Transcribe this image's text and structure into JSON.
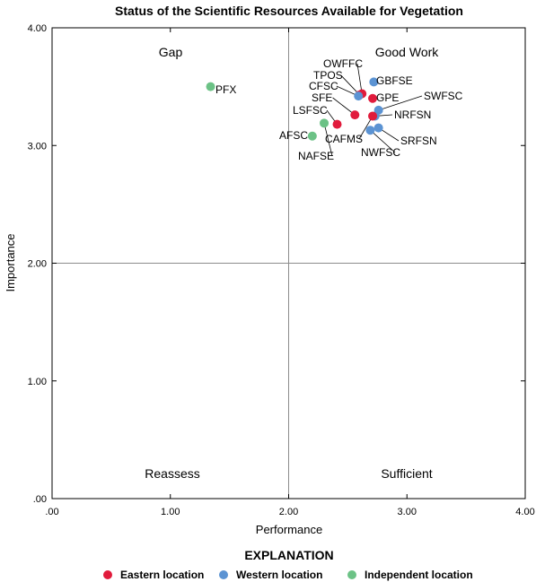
{
  "chart_data": {
    "type": "scatter",
    "title": "Status of the Scientific Resources Available for Vegetation",
    "xlabel": "Performance",
    "ylabel": "Importance",
    "xlim": [
      0,
      4
    ],
    "ylim": [
      0,
      4
    ],
    "x_ticks": [
      ".00",
      "1.00",
      "2.00",
      "3.00",
      "4.00"
    ],
    "y_ticks": [
      ".00",
      "1.00",
      "2.00",
      "3.00",
      "4.00"
    ],
    "reference_lines": {
      "x": 2,
      "y": 2
    },
    "quadrant_labels": {
      "top_left": "Gap",
      "top_right": "Good Work",
      "bottom_left": "Reassess",
      "bottom_right": "Sufficient"
    },
    "colors": {
      "Eastern": "#e11b3c",
      "Western": "#5b93d3",
      "Independent": "#6cc286"
    },
    "legend": {
      "title": "EXPLANATION",
      "placement": "bottom",
      "entries": [
        {
          "group": "Eastern",
          "label": "Eastern location"
        },
        {
          "group": "Western",
          "label": "Western location"
        },
        {
          "group": "Independent",
          "label": "Independent location"
        }
      ]
    },
    "points": [
      {
        "label": "PFX",
        "x": 1.34,
        "y": 3.5,
        "group": "Independent"
      },
      {
        "label": "OWFFC",
        "x": 2.62,
        "y": 3.44,
        "group": "Eastern"
      },
      {
        "label": "TPOS",
        "x": 2.6,
        "y": 3.43,
        "group": "Eastern"
      },
      {
        "label": "CFSC",
        "x": 2.59,
        "y": 3.42,
        "group": "Western"
      },
      {
        "label": "GBFSE",
        "x": 2.72,
        "y": 3.54,
        "group": "Western"
      },
      {
        "label": "GPE",
        "x": 2.71,
        "y": 3.4,
        "group": "Eastern"
      },
      {
        "label": "SFE",
        "x": 2.56,
        "y": 3.26,
        "group": "Eastern"
      },
      {
        "label": "SWFSC",
        "x": 2.76,
        "y": 3.3,
        "group": "Western"
      },
      {
        "label": "NRFSN",
        "x": 2.73,
        "y": 3.25,
        "group": "Western"
      },
      {
        "label": "LSFSC",
        "x": 2.41,
        "y": 3.18,
        "group": "Eastern"
      },
      {
        "label": "AFSC",
        "x": 2.2,
        "y": 3.08,
        "group": "Independent"
      },
      {
        "label": "NAFSE",
        "x": 2.3,
        "y": 3.19,
        "group": "Independent"
      },
      {
        "label": "CAFMS",
        "x": 2.71,
        "y": 3.25,
        "group": "Eastern"
      },
      {
        "label": "NWFSC",
        "x": 2.69,
        "y": 3.13,
        "group": "Western"
      },
      {
        "label": "SRFSN",
        "x": 2.76,
        "y": 3.15,
        "group": "Western"
      }
    ]
  }
}
